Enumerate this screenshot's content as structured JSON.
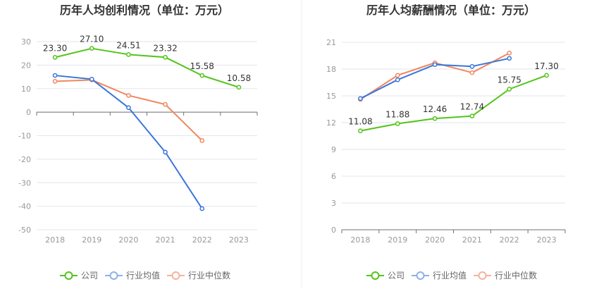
{
  "chart_data": [
    {
      "type": "line",
      "title": "历年人均创利情况（单位：万元）",
      "categories": [
        "2018",
        "2019",
        "2020",
        "2021",
        "2022",
        "2023"
      ],
      "ylim": [
        -50,
        30
      ],
      "yticks": [
        "30",
        "20",
        "10",
        "0",
        "-10",
        "-20",
        "-30",
        "-40",
        "-50"
      ],
      "series": [
        {
          "name": "公司",
          "color": "#52c41a",
          "values": [
            23.3,
            27.1,
            24.51,
            23.32,
            15.58,
            10.58
          ],
          "labels": [
            "23.30",
            "27.10",
            "24.51",
            "23.32",
            "15.58",
            "10.58"
          ]
        },
        {
          "name": "行业均值",
          "color": "#3a76d8",
          "values": [
            15.6,
            14.0,
            1.9,
            -17.0,
            -41.0,
            null
          ]
        },
        {
          "name": "行业中位数",
          "color": "#f0875f",
          "values": [
            13.1,
            13.7,
            7.1,
            3.3,
            -12.1,
            null
          ]
        }
      ]
    },
    {
      "type": "line",
      "title": "历年人均薪酬情况（单位：万元）",
      "categories": [
        "2018",
        "2019",
        "2020",
        "2021",
        "2022",
        "2023"
      ],
      "ylim": [
        0,
        21
      ],
      "yticks": [
        "21",
        "18",
        "15",
        "12",
        "9",
        "6",
        "3",
        "0"
      ],
      "series": [
        {
          "name": "公司",
          "color": "#52c41a",
          "values": [
            11.08,
            11.88,
            12.46,
            12.74,
            15.75,
            17.3
          ],
          "labels": [
            "11.08",
            "11.88",
            "12.46",
            "12.74",
            "15.75",
            "17.30"
          ]
        },
        {
          "name": "行业均值",
          "color": "#3a76d8",
          "values": [
            14.7,
            16.8,
            18.5,
            18.3,
            19.2,
            null
          ]
        },
        {
          "name": "行业中位数",
          "color": "#f0875f",
          "values": [
            14.6,
            17.3,
            18.7,
            17.6,
            19.8,
            null
          ]
        }
      ]
    }
  ],
  "legend": [
    {
      "name": "公司",
      "color": "#52c41a"
    },
    {
      "name": "行业均值",
      "color": "#8fb0e8"
    },
    {
      "name": "行业中位数",
      "color": "#f5b39b"
    }
  ]
}
